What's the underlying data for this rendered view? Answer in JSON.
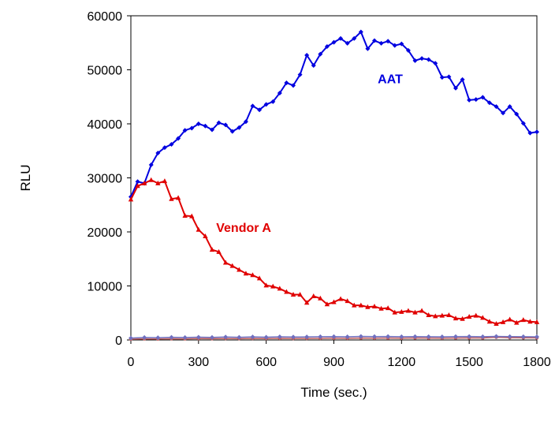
{
  "chart_data": {
    "type": "line",
    "title": "",
    "xlabel": "Time (sec.)",
    "ylabel": "RLU",
    "xlim": [
      0,
      1800
    ],
    "ylim": [
      0,
      60000
    ],
    "xticks": [
      0,
      300,
      600,
      900,
      1200,
      1500,
      1800
    ],
    "yticks": [
      0,
      10000,
      20000,
      30000,
      40000,
      50000,
      60000
    ],
    "grid": false,
    "legend": "none",
    "series": [
      {
        "name": "AAT",
        "color": "#0000e0",
        "marker": "diamond",
        "label_at": [
          1150,
          47500
        ],
        "x": [
          0,
          30,
          60,
          90,
          120,
          150,
          180,
          210,
          240,
          270,
          300,
          330,
          360,
          390,
          420,
          450,
          480,
          510,
          540,
          570,
          600,
          630,
          660,
          690,
          720,
          750,
          780,
          810,
          840,
          870,
          900,
          930,
          960,
          990,
          1020,
          1050,
          1080,
          1110,
          1140,
          1170,
          1200,
          1230,
          1260,
          1290,
          1320,
          1350,
          1380,
          1410,
          1440,
          1470,
          1500,
          1530,
          1560,
          1590,
          1620,
          1650,
          1680,
          1710,
          1740,
          1770,
          1800
        ],
        "values": [
          26500,
          29300,
          29000,
          32400,
          34600,
          35600,
          36200,
          37300,
          38800,
          39200,
          40000,
          39600,
          38900,
          40200,
          39800,
          38600,
          39300,
          40400,
          43300,
          42600,
          43600,
          44100,
          45700,
          47600,
          47100,
          49100,
          52700,
          50800,
          52900,
          54300,
          55100,
          55800,
          54900,
          55800,
          57000,
          53900,
          55400,
          54900,
          55300,
          54500,
          54800,
          53600,
          51700,
          52100,
          51900,
          51200,
          48600,
          48700,
          46600,
          48200,
          44400,
          44500,
          44900,
          43900,
          43200,
          42000,
          43200,
          41800,
          40100,
          38300,
          38500
        ]
      },
      {
        "name": "Vendor A",
        "color": "#e00000",
        "marker": "triangle",
        "label_at": [
          500,
          20000
        ],
        "x": [
          0,
          30,
          60,
          90,
          120,
          150,
          180,
          210,
          240,
          270,
          300,
          330,
          360,
          390,
          420,
          450,
          480,
          510,
          540,
          570,
          600,
          630,
          660,
          690,
          720,
          750,
          780,
          810,
          840,
          870,
          900,
          930,
          960,
          990,
          1020,
          1050,
          1080,
          1110,
          1140,
          1170,
          1200,
          1230,
          1260,
          1290,
          1320,
          1350,
          1380,
          1410,
          1440,
          1470,
          1500,
          1530,
          1560,
          1590,
          1620,
          1650,
          1680,
          1710,
          1740,
          1770,
          1800
        ],
        "values": [
          26000,
          28500,
          29000,
          29600,
          29000,
          29400,
          26100,
          26300,
          23000,
          22900,
          20400,
          19200,
          16700,
          16300,
          14300,
          13700,
          13000,
          12300,
          12000,
          11400,
          10100,
          9900,
          9500,
          8900,
          8400,
          8400,
          6900,
          8100,
          7700,
          6600,
          7000,
          7600,
          7200,
          6400,
          6400,
          6100,
          6200,
          5800,
          5900,
          5100,
          5200,
          5400,
          5100,
          5400,
          4600,
          4400,
          4500,
          4600,
          4000,
          3900,
          4300,
          4500,
          4100,
          3400,
          3000,
          3300,
          3800,
          3200,
          3700,
          3400,
          3300
        ]
      },
      {
        "name": "",
        "color": "#c06060",
        "marker": "circle",
        "x": [
          0,
          60,
          120,
          180,
          240,
          300,
          360,
          420,
          480,
          540,
          600,
          660,
          720,
          780,
          840,
          900,
          960,
          1020,
          1080,
          1140,
          1200,
          1260,
          1320,
          1380,
          1440,
          1500,
          1560,
          1620,
          1680,
          1740,
          1800
        ],
        "values": [
          150,
          200,
          180,
          220,
          200,
          250,
          230,
          260,
          240,
          280,
          260,
          300,
          270,
          280,
          300,
          320,
          300,
          350,
          330,
          340,
          320,
          360,
          340,
          330,
          350,
          370,
          360,
          500,
          420,
          400,
          380
        ]
      },
      {
        "name": "",
        "color": "#7070c0",
        "marker": "diamond",
        "x": [
          0,
          60,
          120,
          180,
          240,
          300,
          360,
          420,
          480,
          540,
          600,
          660,
          720,
          780,
          840,
          900,
          960,
          1020,
          1080,
          1140,
          1200,
          1260,
          1320,
          1380,
          1440,
          1500,
          1560,
          1620,
          1680,
          1740,
          1800
        ],
        "values": [
          350,
          450,
          420,
          500,
          460,
          520,
          480,
          540,
          500,
          560,
          520,
          580,
          540,
          560,
          600,
          620,
          580,
          650,
          620,
          640,
          600,
          620,
          600,
          580,
          620,
          640,
          600,
          650,
          620,
          600,
          580
        ]
      }
    ]
  }
}
